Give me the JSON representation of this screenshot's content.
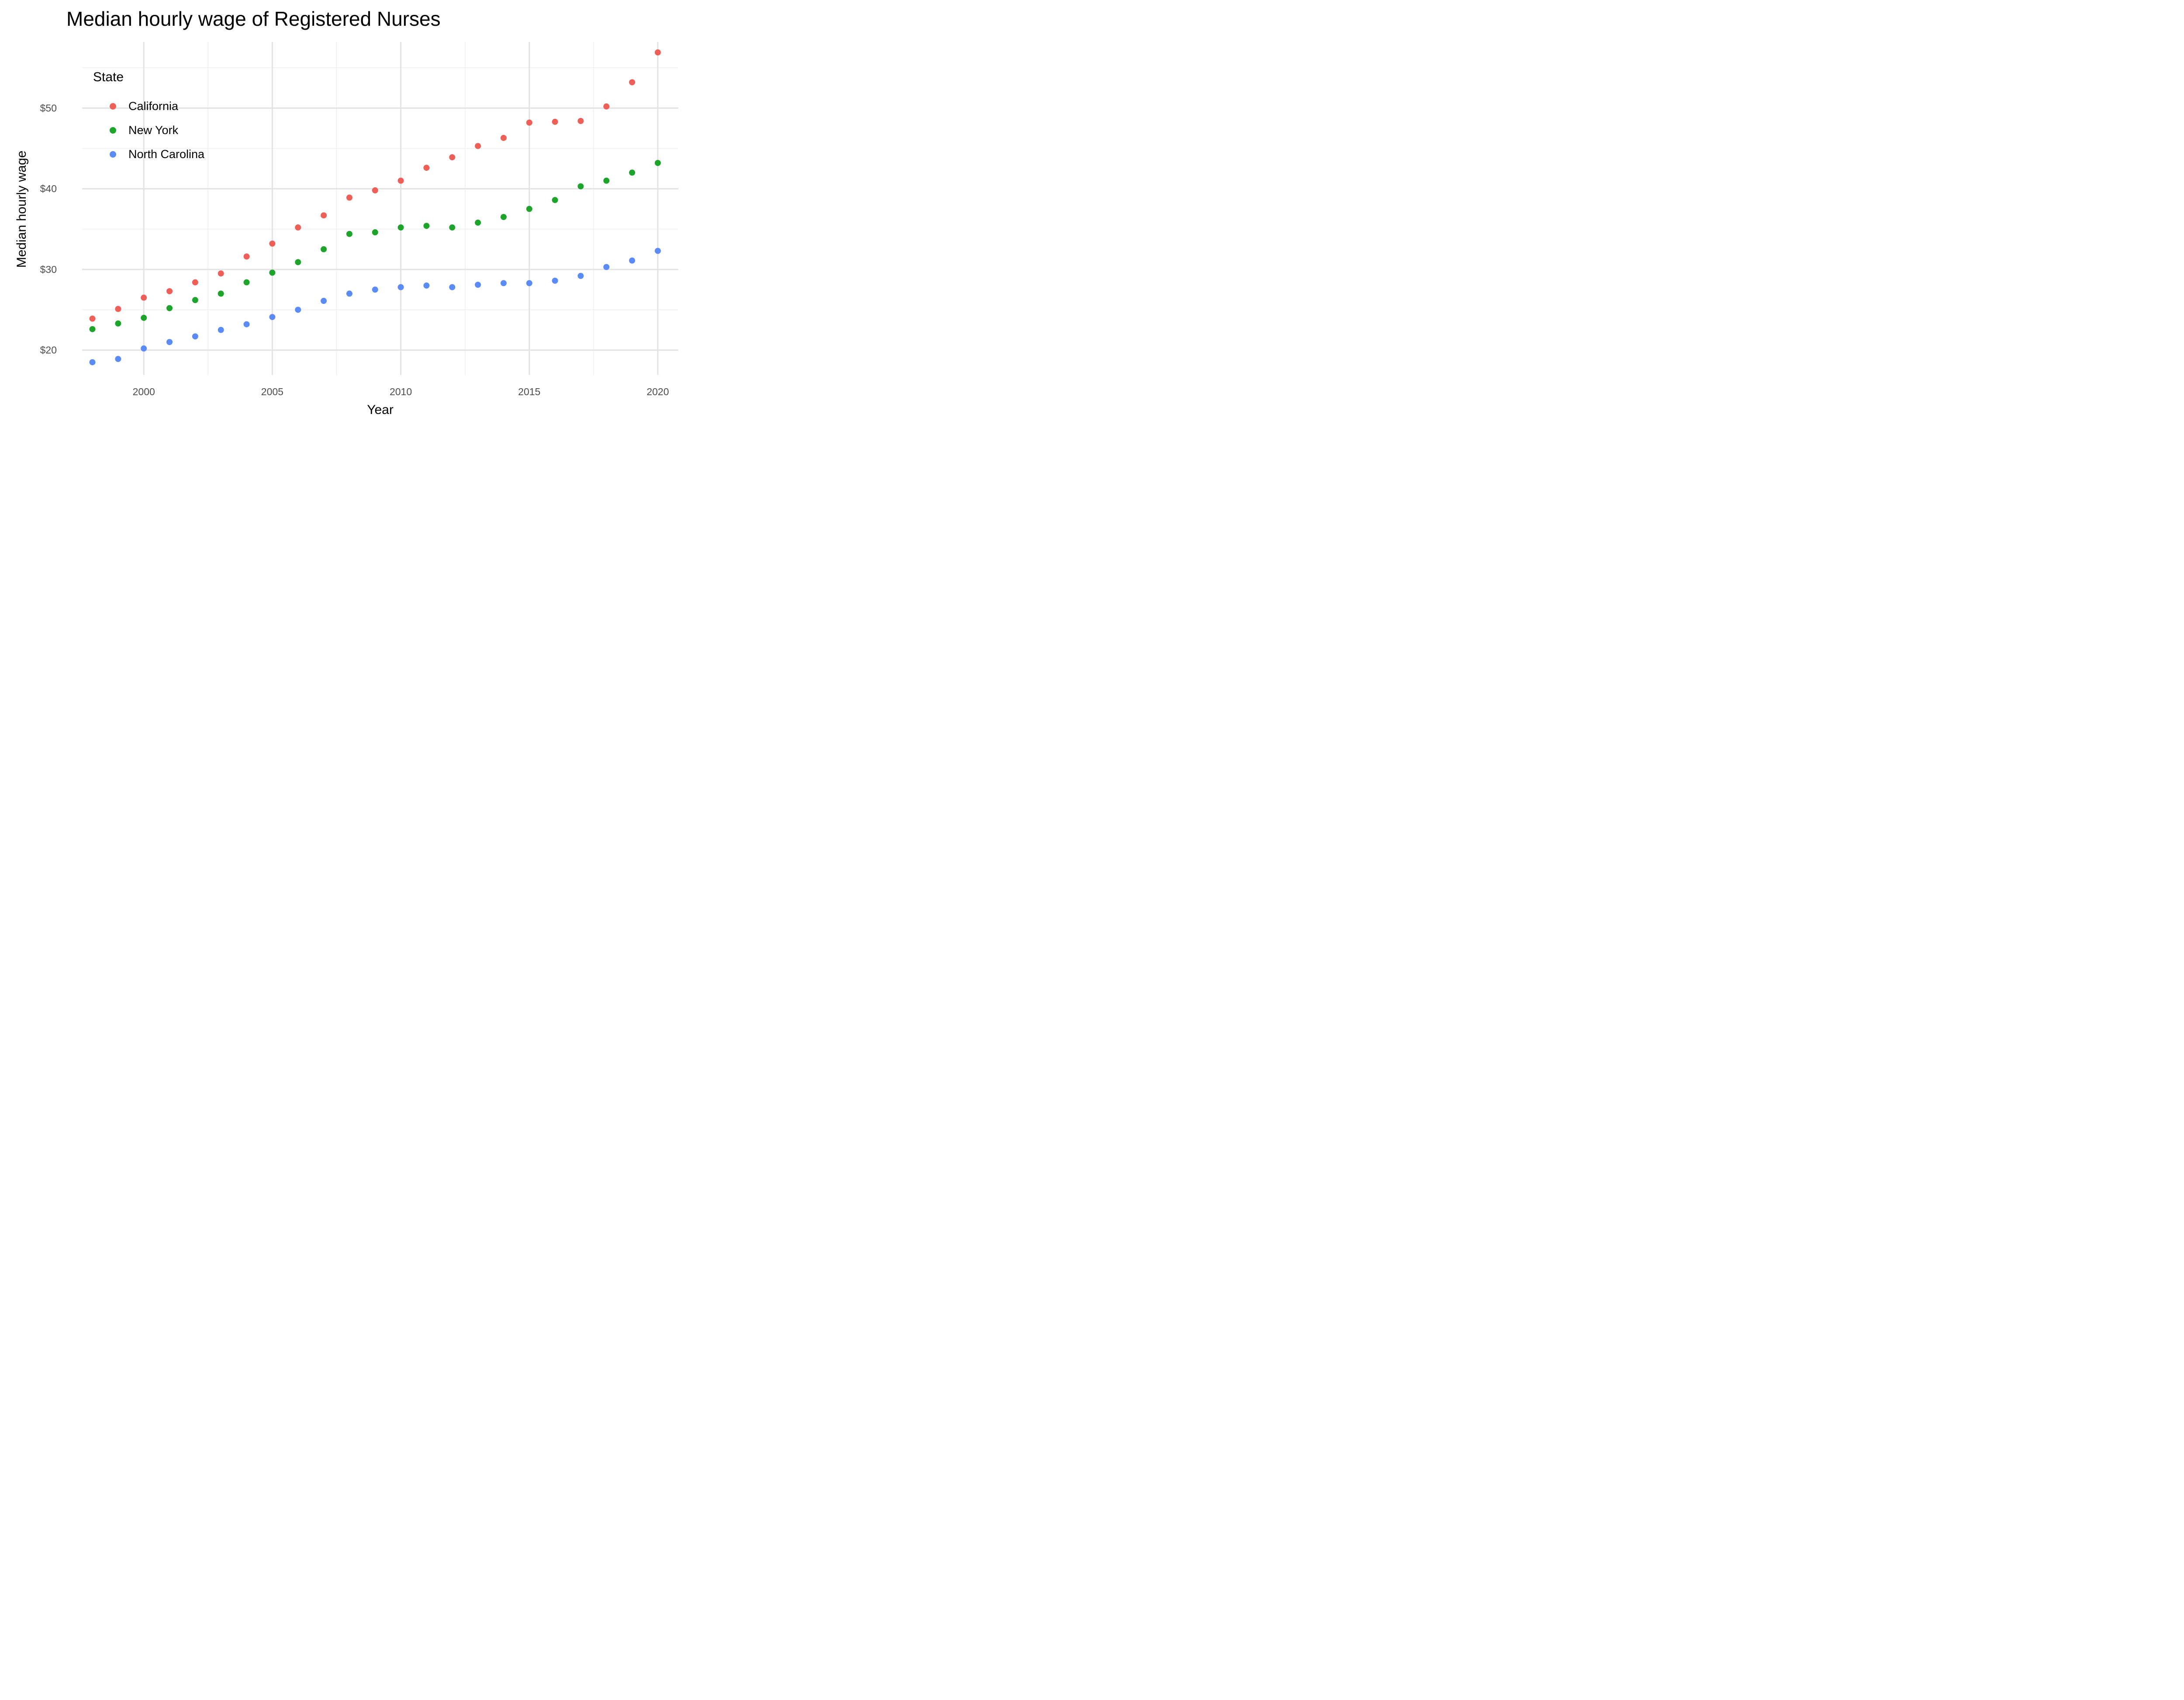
{
  "chart_data": {
    "type": "scatter",
    "title": "Median hourly wage of Registered Nurses",
    "xlabel": "Year",
    "ylabel": "Median hourly wage",
    "legend_title": "State",
    "legend_position": "inside top-left",
    "grid": "major and minor, light gray on white",
    "xlim": [
      1997.6,
      2020.8
    ],
    "ylim": [
      16.9,
      58.2
    ],
    "x_major_ticks": [
      2000,
      2005,
      2010,
      2015,
      2020
    ],
    "x_tick_labels": [
      "2000",
      "2005",
      "2010",
      "2015",
      "2020"
    ],
    "x_minor_gridlines": [
      2002.5,
      2007.5,
      2012.5,
      2017.5
    ],
    "y_major_ticks": [
      20,
      30,
      40,
      50
    ],
    "y_tick_labels": [
      "$20",
      "$30",
      "$40",
      "$50"
    ],
    "y_minor_gridlines": [
      25,
      35,
      45,
      55
    ],
    "x": [
      1998,
      1999,
      2000,
      2001,
      2002,
      2003,
      2004,
      2005,
      2006,
      2007,
      2008,
      2009,
      2010,
      2011,
      2012,
      2013,
      2014,
      2015,
      2016,
      2017,
      2018,
      2019,
      2020
    ],
    "series": [
      {
        "name": "California",
        "color": "#EE5F58",
        "values": [
          23.9,
          25.1,
          26.5,
          27.3,
          28.4,
          29.5,
          31.6,
          33.2,
          35.2,
          36.7,
          38.9,
          39.8,
          41.0,
          42.6,
          43.9,
          45.3,
          46.3,
          48.2,
          48.3,
          48.4,
          50.2,
          53.2,
          56.9
        ]
      },
      {
        "name": "New York",
        "color": "#1CA42B",
        "values": [
          22.6,
          23.3,
          24.0,
          25.2,
          26.2,
          27.0,
          28.4,
          29.6,
          30.9,
          32.5,
          34.4,
          34.6,
          35.2,
          35.4,
          35.2,
          35.8,
          36.5,
          37.5,
          38.6,
          40.3,
          41.0,
          42.0,
          43.2
        ]
      },
      {
        "name": "North Carolina",
        "color": "#5B8BF7",
        "values": [
          18.5,
          18.9,
          20.2,
          21.0,
          21.7,
          22.5,
          23.2,
          24.1,
          25.0,
          26.1,
          27.0,
          27.5,
          27.8,
          28.0,
          27.8,
          28.1,
          28.3,
          28.3,
          28.6,
          29.2,
          30.3,
          31.1,
          32.3
        ]
      }
    ]
  },
  "colors": {
    "background": "#FFFFFF",
    "grid_major": "#E3E3E3",
    "grid_minor": "#EFEFEF",
    "tick_label": "#4D4D4D",
    "text": "#000000"
  }
}
